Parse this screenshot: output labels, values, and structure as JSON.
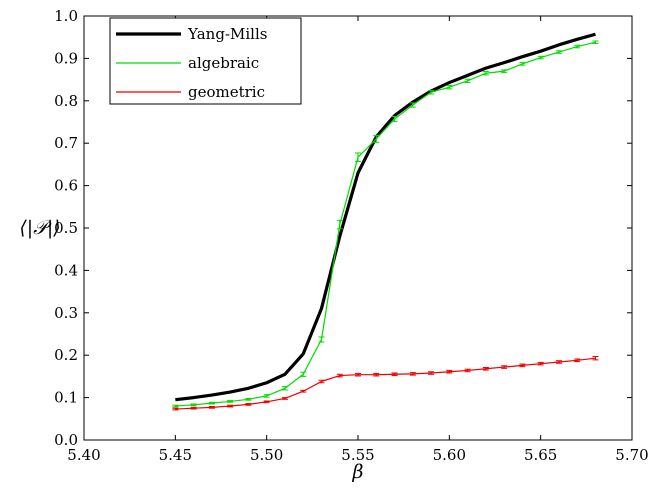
{
  "chart_data": {
    "type": "line",
    "xlabel": "β",
    "ylabel": "⟨|𝒫|⟩",
    "xlim": [
      5.4,
      5.7
    ],
    "ylim": [
      0.0,
      1.0
    ],
    "xticks": [
      "5.40",
      "5.45",
      "5.50",
      "5.55",
      "5.60",
      "5.65",
      "5.70"
    ],
    "yticks": [
      "0.0",
      "0.1",
      "0.2",
      "0.3",
      "0.4",
      "0.5",
      "0.6",
      "0.7",
      "0.8",
      "0.9",
      "1.0"
    ],
    "grid": false,
    "legend_position": "top-left",
    "series": [
      {
        "name": "Yang-Mills",
        "color": "#000000",
        "error_bars": false,
        "x": [
          5.45,
          5.46,
          5.47,
          5.48,
          5.49,
          5.5,
          5.51,
          5.52,
          5.53,
          5.54,
          5.55,
          5.56,
          5.57,
          5.58,
          5.59,
          5.6,
          5.61,
          5.62,
          5.63,
          5.64,
          5.65,
          5.66,
          5.67,
          5.68
        ],
        "y": [
          0.095,
          0.1,
          0.106,
          0.113,
          0.122,
          0.135,
          0.155,
          0.203,
          0.31,
          0.48,
          0.63,
          0.715,
          0.765,
          0.797,
          0.823,
          0.843,
          0.86,
          0.877,
          0.89,
          0.904,
          0.917,
          0.932,
          0.945,
          0.957
        ]
      },
      {
        "name": "algebraic",
        "color": "#00dd00",
        "error_bars": true,
        "x": [
          5.45,
          5.46,
          5.47,
          5.48,
          5.49,
          5.5,
          5.51,
          5.52,
          5.53,
          5.54,
          5.55,
          5.56,
          5.57,
          5.58,
          5.59,
          5.6,
          5.61,
          5.62,
          5.63,
          5.64,
          5.65,
          5.66,
          5.67,
          5.68
        ],
        "y": [
          0.08,
          0.083,
          0.087,
          0.091,
          0.096,
          0.104,
          0.122,
          0.155,
          0.237,
          0.508,
          0.667,
          0.71,
          0.757,
          0.79,
          0.82,
          0.832,
          0.847,
          0.865,
          0.87,
          0.887,
          0.902,
          0.915,
          0.928,
          0.938
        ],
        "errors": [
          0.002,
          0.002,
          0.002,
          0.002,
          0.002,
          0.003,
          0.004,
          0.005,
          0.006,
          0.01,
          0.01,
          0.008,
          0.006,
          0.005,
          0.004,
          0.004,
          0.004,
          0.004,
          0.003,
          0.003,
          0.003,
          0.003,
          0.003,
          0.003
        ]
      },
      {
        "name": "geometric",
        "color": "#ee0000",
        "error_bars": true,
        "x": [
          5.45,
          5.46,
          5.47,
          5.48,
          5.49,
          5.5,
          5.51,
          5.52,
          5.53,
          5.54,
          5.55,
          5.56,
          5.57,
          5.58,
          5.59,
          5.6,
          5.61,
          5.62,
          5.63,
          5.64,
          5.65,
          5.66,
          5.67,
          5.68
        ],
        "y": [
          0.073,
          0.075,
          0.077,
          0.08,
          0.084,
          0.09,
          0.098,
          0.115,
          0.138,
          0.152,
          0.154,
          0.154,
          0.155,
          0.156,
          0.158,
          0.161,
          0.164,
          0.168,
          0.172,
          0.176,
          0.18,
          0.184,
          0.188,
          0.193
        ],
        "errors": [
          0.002,
          0.002,
          0.002,
          0.002,
          0.002,
          0.002,
          0.002,
          0.002,
          0.003,
          0.003,
          0.003,
          0.003,
          0.003,
          0.003,
          0.003,
          0.003,
          0.003,
          0.003,
          0.003,
          0.003,
          0.003,
          0.003,
          0.003,
          0.004
        ]
      }
    ]
  }
}
